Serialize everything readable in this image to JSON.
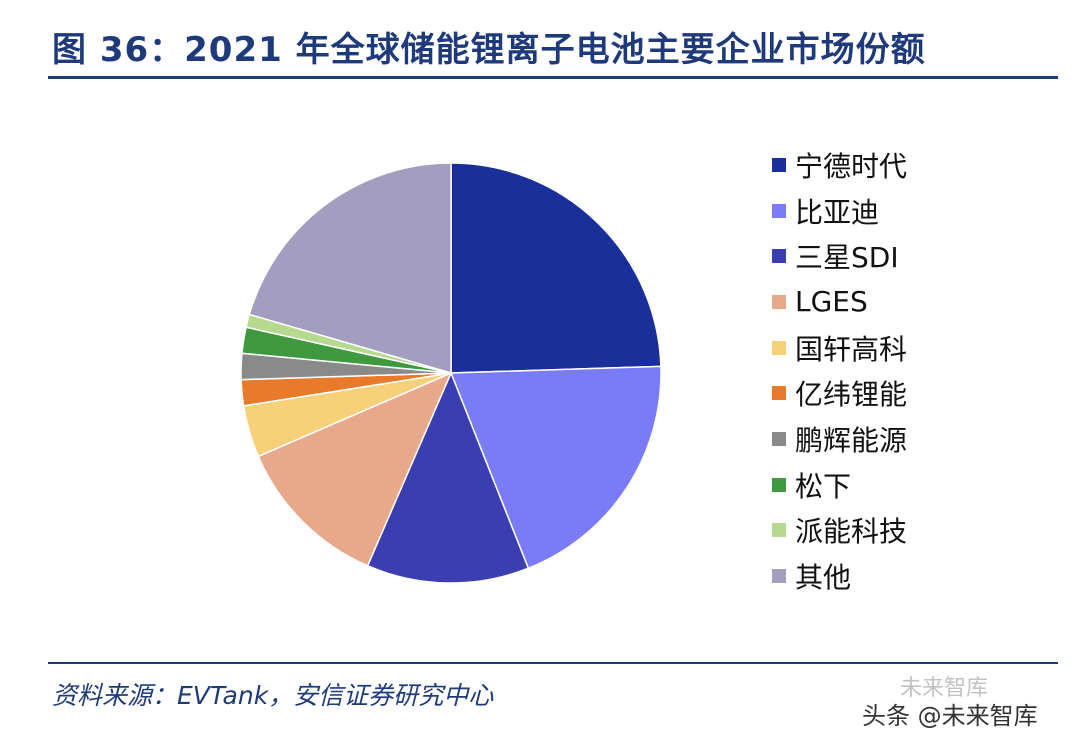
{
  "title": "图 36：2021 年全球储能锂离子电池主要企业市场份额",
  "source": "资料来源：EVTank，安信证券研究中心",
  "watermark": "头条 @未来智库",
  "watermark_faint": "未来智库",
  "chart_data": {
    "type": "pie",
    "title": "图 36：2021 年全球储能锂离子电池主要企业市场份额",
    "legend_position": "right",
    "start_angle_deg": 0,
    "direction": "clockwise",
    "slices": [
      {
        "label": "宁德时代",
        "value": 24.5,
        "color": "#1a2f9a"
      },
      {
        "label": "比亚迪",
        "value": 19.5,
        "color": "#7a7cf7"
      },
      {
        "label": "三星SDI",
        "value": 12.5,
        "color": "#3b3eb0"
      },
      {
        "label": "LGES",
        "value": 12.0,
        "color": "#e8a98a"
      },
      {
        "label": "国轩高科",
        "value": 4.0,
        "color": "#f8d07a"
      },
      {
        "label": "亿纬锂能",
        "value": 2.0,
        "color": "#e87a2a"
      },
      {
        "label": "鹏辉能源",
        "value": 2.0,
        "color": "#8a8a8a"
      },
      {
        "label": "松下",
        "value": 2.0,
        "color": "#3f9a3f"
      },
      {
        "label": "派能科技",
        "value": 1.0,
        "color": "#b5d98e"
      },
      {
        "label": "其他",
        "value": 20.5,
        "color": "#a39ec0"
      }
    ]
  }
}
